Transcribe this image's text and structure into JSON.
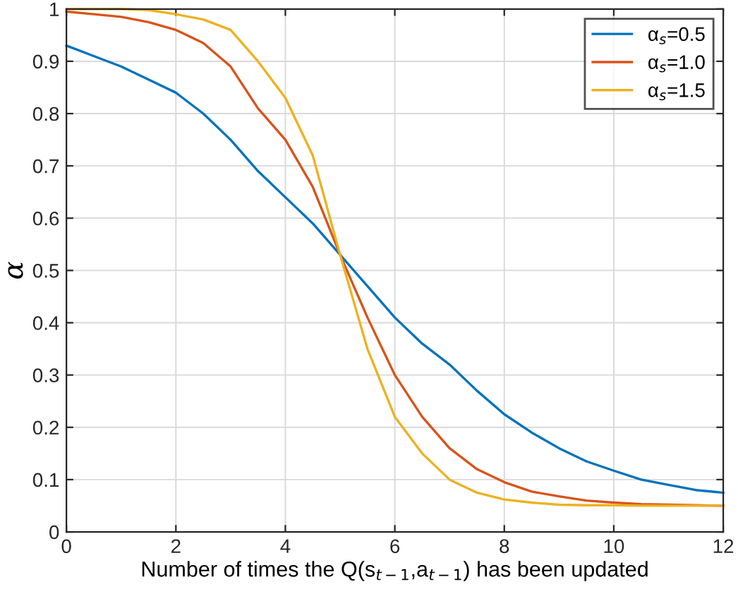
{
  "chart_data": {
    "type": "line",
    "xlabel": "Number of times the Q(s$_{t−1}$,a$_{t−1}$) has been updated",
    "ylabel": "α",
    "xlim": [
      0,
      12
    ],
    "ylim": [
      0,
      1
    ],
    "xticks": [
      0,
      2,
      4,
      6,
      8,
      10,
      12
    ],
    "yticks": [
      0,
      0.1,
      0.2,
      0.3,
      0.4,
      0.5,
      0.6,
      0.7,
      0.8,
      0.9,
      1
    ],
    "grid": true,
    "legend": "top right",
    "x": [
      0,
      0.5,
      1,
      1.5,
      2,
      2.5,
      3,
      3.5,
      4,
      4.5,
      5,
      5.5,
      6,
      6.5,
      7,
      7.5,
      8,
      8.5,
      9,
      9.5,
      10,
      10.5,
      11,
      11.5,
      12
    ],
    "series": [
      {
        "name": "α$_{s}$=0.5",
        "color": "#0072bd",
        "values": [
          0.93,
          0.91,
          0.89,
          0.865,
          0.84,
          0.8,
          0.75,
          0.69,
          0.64,
          0.59,
          0.53,
          0.47,
          0.41,
          0.36,
          0.32,
          0.27,
          0.225,
          0.19,
          0.16,
          0.135,
          0.117,
          0.1,
          0.09,
          0.08,
          0.075
        ]
      },
      {
        "name": "α$_{s}$=1.0",
        "color": "#d95319",
        "values": [
          0.995,
          0.99,
          0.985,
          0.975,
          0.96,
          0.935,
          0.89,
          0.81,
          0.75,
          0.66,
          0.53,
          0.41,
          0.3,
          0.22,
          0.16,
          0.12,
          0.095,
          0.077,
          0.068,
          0.06,
          0.056,
          0.053,
          0.052,
          0.051,
          0.05
        ]
      },
      {
        "name": "α$_{s}$=1.5",
        "color": "#edb120",
        "values": [
          1.0,
          1.0,
          1.0,
          0.998,
          0.99,
          0.98,
          0.96,
          0.9,
          0.83,
          0.72,
          0.53,
          0.35,
          0.22,
          0.15,
          0.1,
          0.075,
          0.062,
          0.056,
          0.052,
          0.051,
          0.051,
          0.05,
          0.05,
          0.05,
          0.05
        ]
      }
    ]
  }
}
